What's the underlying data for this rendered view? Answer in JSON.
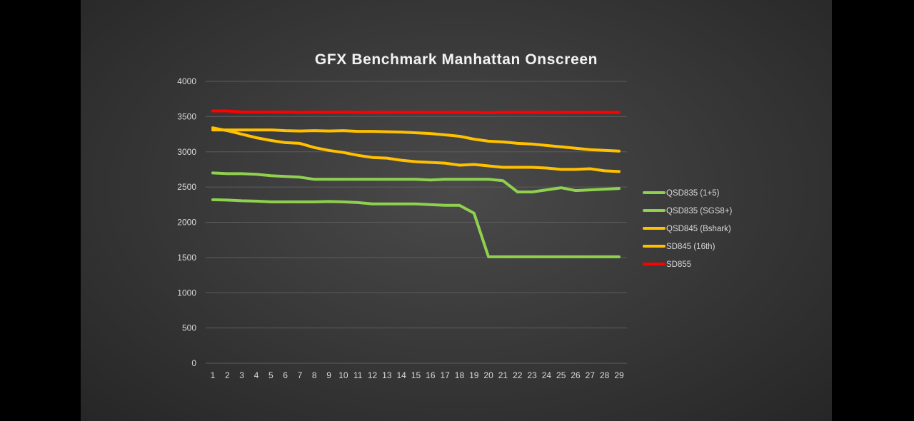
{
  "chart_data": {
    "type": "line",
    "title": "GFX Benchmark Manhattan Onscreen",
    "xlabel": "",
    "ylabel": "",
    "x": [
      1,
      2,
      3,
      4,
      5,
      6,
      7,
      8,
      9,
      10,
      11,
      12,
      13,
      14,
      15,
      16,
      17,
      18,
      19,
      20,
      21,
      22,
      23,
      24,
      25,
      26,
      27,
      28,
      29
    ],
    "ylim": [
      0,
      4000
    ],
    "yticks": [
      0,
      500,
      1000,
      1500,
      2000,
      2500,
      3000,
      3500,
      4000
    ],
    "grid": true,
    "legend_position": "right",
    "series": [
      {
        "name": "QSD835 (1+5)",
        "color": "#8fd14f",
        "values": [
          2700,
          2690,
          2690,
          2680,
          2660,
          2650,
          2640,
          2610,
          2610,
          2610,
          2610,
          2610,
          2610,
          2610,
          2610,
          2600,
          2610,
          2610,
          2610,
          2610,
          2590,
          2430,
          2430,
          2460,
          2490,
          2450,
          2460,
          2470,
          2480
        ]
      },
      {
        "name": "QSD835 (SGS8+)",
        "color": "#8fd14f",
        "values": [
          2320,
          2315,
          2305,
          2300,
          2290,
          2290,
          2290,
          2290,
          2295,
          2290,
          2280,
          2260,
          2260,
          2260,
          2260,
          2250,
          2240,
          2240,
          2130,
          1510,
          1510,
          1510,
          1510,
          1510,
          1510,
          1510,
          1510,
          1510,
          1510
        ]
      },
      {
        "name": "QSD845 (Bshark)",
        "color": "#ffc000",
        "values": [
          3340,
          3300,
          3250,
          3200,
          3160,
          3130,
          3120,
          3060,
          3020,
          2990,
          2950,
          2920,
          2910,
          2880,
          2860,
          2850,
          2840,
          2810,
          2820,
          2800,
          2780,
          2780,
          2780,
          2770,
          2750,
          2750,
          2760,
          2730,
          2720
        ]
      },
      {
        "name": "SD845 (16th)",
        "color": "#ffc000",
        "values": [
          3310,
          3310,
          3310,
          3310,
          3310,
          3300,
          3295,
          3300,
          3295,
          3300,
          3290,
          3290,
          3285,
          3280,
          3270,
          3260,
          3240,
          3220,
          3180,
          3150,
          3140,
          3120,
          3110,
          3090,
          3070,
          3050,
          3030,
          3020,
          3010
        ]
      },
      {
        "name": "SD855",
        "color": "#ff0000",
        "values": [
          3580,
          3580,
          3565,
          3565,
          3565,
          3565,
          3560,
          3565,
          3560,
          3565,
          3560,
          3560,
          3560,
          3560,
          3560,
          3560,
          3560,
          3560,
          3560,
          3555,
          3560,
          3560,
          3560,
          3560,
          3560,
          3560,
          3560,
          3560,
          3560
        ]
      }
    ]
  }
}
